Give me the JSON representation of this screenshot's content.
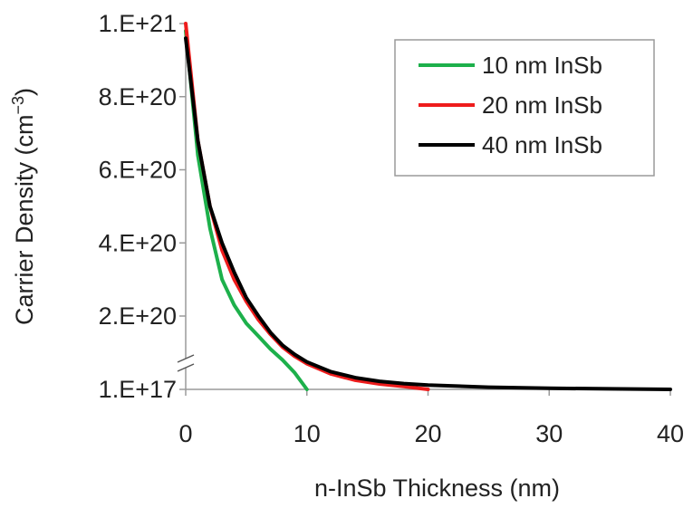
{
  "chart_data": {
    "type": "line",
    "title": "",
    "xlabel": "n-InSb Thickness (nm)",
    "ylabel": {
      "prefix": "Carrier Density (cm",
      "superscript": "−3",
      "suffix": ")"
    },
    "xlim": [
      0,
      40
    ],
    "x_ticks": [
      "0",
      "10",
      "20",
      "30",
      "40"
    ],
    "x_tick_values": [
      0,
      10,
      20,
      30,
      40
    ],
    "y_ticks": [
      "1.E+17",
      "2.E+20",
      "4.E+20",
      "6.E+20",
      "8.E+20",
      "1.E+21"
    ],
    "y_tick_values": [
      1e+17,
      2e+20,
      4e+20,
      6e+20,
      8e+20,
      1e+21
    ],
    "y_axis_break": true,
    "y_axis_break_between": [
      "1.E+17",
      "2.E+20"
    ],
    "grid": false,
    "legend_position": "top-right",
    "series": [
      {
        "name": "10 nm InSb",
        "color": "#1db04b",
        "x": [
          0,
          1,
          2,
          3,
          4,
          5,
          6,
          7,
          8,
          9,
          10
        ],
        "y": [
          9.8e+20,
          6.4e+20,
          4.4e+20,
          3e+20,
          2.3e+20,
          1.8e+20,
          1.45e+20,
          1.1e+20,
          8e+19,
          4.5e+19,
          1e+17
        ]
      },
      {
        "name": "20 nm InSb",
        "color": "#ee1c1c",
        "x": [
          0,
          1,
          2,
          3,
          4,
          5,
          6,
          7,
          8,
          9,
          10,
          12,
          14,
          16,
          18,
          20
        ],
        "y": [
          1e+21,
          6.8e+20,
          5e+20,
          3.8e+20,
          3e+20,
          2.4e+20,
          1.9e+20,
          1.5e+20,
          1.15e+20,
          9e+19,
          7e+19,
          4.2e+19,
          2.5e+19,
          1.5e+19,
          8e+18,
          1e+17
        ]
      },
      {
        "name": "40 nm InSb",
        "color": "#000000",
        "x": [
          0,
          1,
          2,
          3,
          4,
          5,
          6,
          7,
          8,
          9,
          10,
          12,
          14,
          16,
          18,
          20,
          25,
          30,
          35,
          40
        ],
        "y": [
          9.6e+20,
          6.8e+20,
          5e+20,
          4e+20,
          3.2e+20,
          2.5e+20,
          2e+20,
          1.55e+20,
          1.2e+20,
          9.5e+19,
          7.5e+19,
          4.8e+19,
          3.2e+19,
          2.2e+19,
          1.6e+19,
          1.2e+19,
          6e+18,
          3e+18,
          1.5e+18,
          1e+17
        ]
      }
    ]
  }
}
